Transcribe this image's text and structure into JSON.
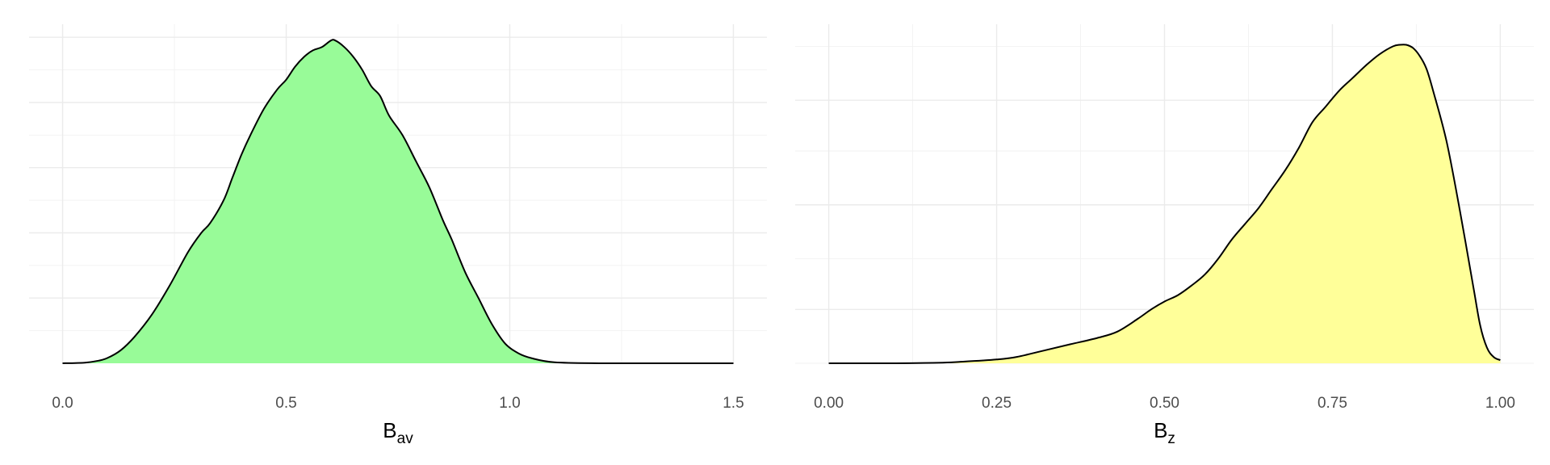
{
  "chart_data": [
    {
      "type": "area",
      "fill_color": "#98fb98",
      "xlabel": {
        "main": "B",
        "sub": "av"
      },
      "ylabel": "",
      "xlim": [
        -0.075,
        1.575
      ],
      "ylim": [
        0,
        1.04
      ],
      "x_ticks": [
        0,
        0.5,
        1,
        1.5
      ],
      "x_tick_labels": [
        "0.0",
        "0.5",
        "1.0",
        "1.5"
      ],
      "x_minor": [
        0.25,
        0.75,
        1.25
      ],
      "y_grid_major": [
        0.2,
        0.4,
        0.6,
        0.8,
        1.0
      ],
      "y_grid_minor": [
        0.1,
        0.3,
        0.5,
        0.7,
        0.9
      ],
      "grid": true,
      "points": {
        "x": [
          0,
          0.05,
          0.08,
          0.1,
          0.13,
          0.16,
          0.2,
          0.24,
          0.28,
          0.31,
          0.33,
          0.36,
          0.38,
          0.4,
          0.42,
          0.45,
          0.48,
          0.5,
          0.52,
          0.54,
          0.56,
          0.58,
          0.6,
          0.61,
          0.63,
          0.65,
          0.67,
          0.69,
          0.71,
          0.73,
          0.76,
          0.79,
          0.82,
          0.85,
          0.87,
          0.9,
          0.93,
          0.96,
          0.99,
          1.02,
          1.05,
          1.1,
          1.2,
          1.35,
          1.5
        ],
        "y": [
          0.0,
          0.002,
          0.008,
          0.016,
          0.04,
          0.08,
          0.15,
          0.24,
          0.34,
          0.4,
          0.43,
          0.5,
          0.57,
          0.64,
          0.7,
          0.78,
          0.84,
          0.87,
          0.91,
          0.94,
          0.96,
          0.97,
          0.99,
          0.99,
          0.97,
          0.94,
          0.9,
          0.85,
          0.82,
          0.76,
          0.7,
          0.62,
          0.54,
          0.44,
          0.38,
          0.28,
          0.2,
          0.12,
          0.06,
          0.03,
          0.015,
          0.003,
          0.0,
          0.0,
          0.0
        ]
      }
    },
    {
      "type": "area",
      "fill_color": "#ffff99",
      "xlabel": {
        "main": "B",
        "sub": "z"
      },
      "ylabel": "",
      "xlim": [
        -0.05,
        1.05
      ],
      "ylim": [
        0,
        1.07
      ],
      "x_ticks": [
        0,
        0.25,
        0.5,
        0.75,
        1
      ],
      "x_tick_labels": [
        "0.00",
        "0.25",
        "0.50",
        "0.75",
        "1.00"
      ],
      "x_minor": [
        0.125,
        0.375,
        0.625,
        0.875
      ],
      "y_grid_major": [
        0.17,
        0.5,
        0.83
      ],
      "y_grid_minor": [
        0.0,
        0.33,
        0.67,
        1.0
      ],
      "grid": true,
      "points": {
        "x": [
          0,
          0.1,
          0.17,
          0.2,
          0.25,
          0.28,
          0.32,
          0.36,
          0.4,
          0.43,
          0.46,
          0.48,
          0.5,
          0.52,
          0.54,
          0.56,
          0.58,
          0.6,
          0.62,
          0.64,
          0.66,
          0.68,
          0.7,
          0.72,
          0.74,
          0.76,
          0.78,
          0.8,
          0.82,
          0.84,
          0.85,
          0.86,
          0.87,
          0.88,
          0.89,
          0.9,
          0.92,
          0.94,
          0.96,
          0.97,
          0.98,
          0.99,
          1.0
        ],
        "y": [
          0.0,
          0.0,
          0.002,
          0.005,
          0.012,
          0.02,
          0.04,
          0.06,
          0.08,
          0.1,
          0.14,
          0.17,
          0.195,
          0.215,
          0.245,
          0.28,
          0.33,
          0.39,
          0.44,
          0.49,
          0.55,
          0.61,
          0.68,
          0.76,
          0.81,
          0.86,
          0.9,
          0.94,
          0.975,
          1.0,
          1.005,
          1.005,
          0.995,
          0.97,
          0.93,
          0.86,
          0.7,
          0.48,
          0.24,
          0.12,
          0.05,
          0.02,
          0.01
        ]
      }
    }
  ]
}
